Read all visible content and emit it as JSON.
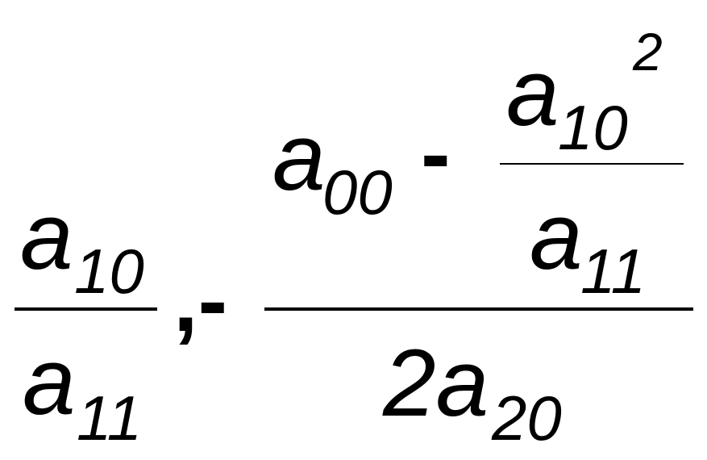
{
  "formula": {
    "left_fraction": {
      "numerator": {
        "base": "a",
        "subscript": "10"
      },
      "denominator": {
        "base": "a",
        "subscript": "11"
      }
    },
    "separator": ",-",
    "right_fraction": {
      "numerator": {
        "term": {
          "base": "a",
          "subscript": "00"
        },
        "operator": "-",
        "fraction": {
          "numerator": {
            "base": "a",
            "subscript": "10",
            "superscript": "2"
          },
          "denominator": {
            "base": "a",
            "subscript": "11"
          }
        }
      },
      "denominator": {
        "base": "2a",
        "subscript": "20"
      }
    }
  }
}
